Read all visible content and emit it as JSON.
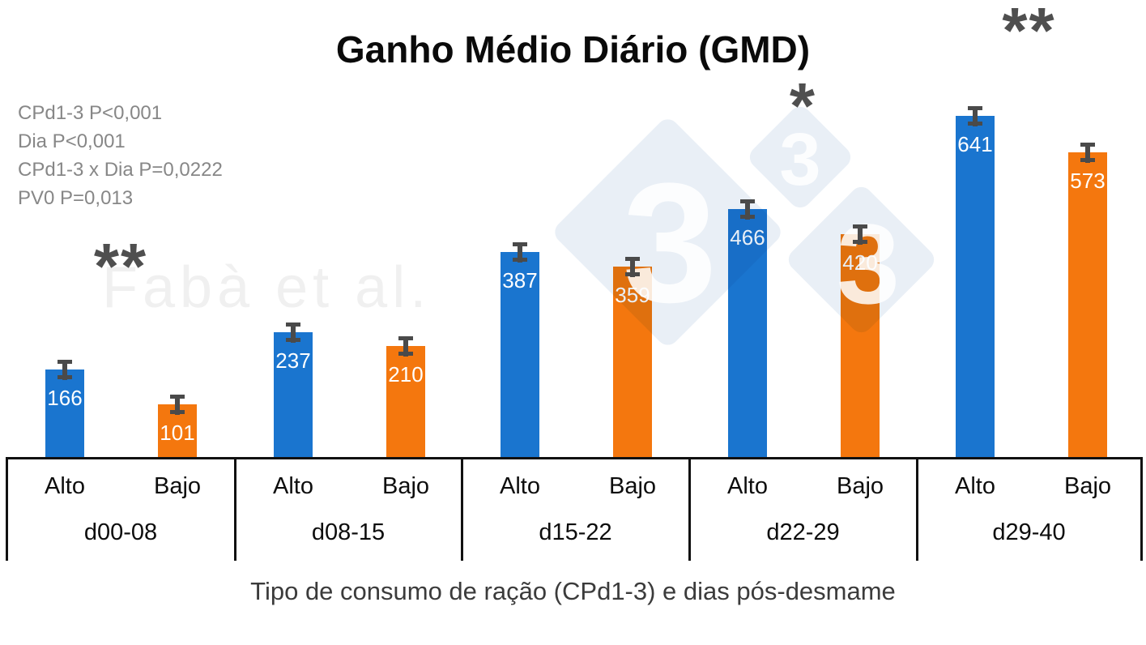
{
  "title": "Ganho Médio Diário (GMD)",
  "stats": [
    "CPd1-3 P<0,001",
    "Dia P<0,001",
    "CPd1-3 x Dia P=0,0222",
    "PV0 P=0,013"
  ],
  "watermark": {
    "author_text": "Fabà et al.",
    "logo_digit": "3",
    "logo_name": "three-diamonds-333-logo"
  },
  "xlabel": "Tipo de consumo de ração (CPd1-3) e dias pós-desmame",
  "colors": {
    "alto_bar": "#1a75cf",
    "bajo_bar": "#f4770e",
    "error_bar": "#4a4a4a",
    "asterisk": "#4f4f4f",
    "stats_text": "#878787",
    "watermark_text": "#f0f0f0",
    "logo_diamond": "#e9eff6",
    "axis": "#111111",
    "value_label": "#ffffff"
  },
  "chart_data": {
    "type": "bar",
    "title": "Ganho Médio Diário (GMD)",
    "xlabel": "Tipo de consumo de ração (CPd1-3) e dias pós-desmame",
    "categories": [
      "d00-08",
      "d08-15",
      "d15-22",
      "d22-29",
      "d29-40"
    ],
    "series": [
      {
        "name": "Alto",
        "values": [
          166,
          237,
          387,
          466,
          641
        ],
        "color": "#1a75cf"
      },
      {
        "name": "Bajo",
        "values": [
          101,
          210,
          359,
          420,
          573
        ],
        "color": "#f4770e"
      }
    ],
    "significance_marks": [
      "**",
      "",
      "",
      "*",
      "**"
    ],
    "error_bars": true,
    "value_labels_on_bars": true,
    "ylim": [
      0,
      680
    ],
    "grid": false,
    "legend_position": "none",
    "bar_tick_labels": [
      "Alto",
      "Bajo"
    ]
  }
}
